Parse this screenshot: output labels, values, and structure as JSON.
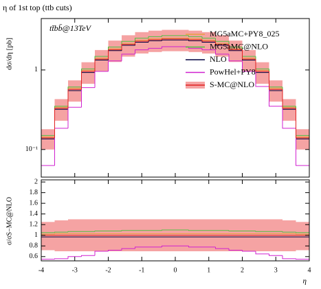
{
  "chart_data": [
    {
      "type": "histogram",
      "title": "η of 1st top (ttb cuts)",
      "y_label": "dσ/dη [pb]",
      "annotation": "tt̄bb̄@13TeV",
      "bins": [
        -4,
        -3.6,
        -3.2,
        -2.8,
        -2.4,
        -2,
        -1.6,
        -1.2,
        -0.8,
        -0.4,
        0,
        0.4,
        0.8,
        1.2,
        1.6,
        2,
        2.4,
        2.8,
        3.2,
        3.6,
        4
      ],
      "log_y": true,
      "xlim": [
        -4,
        4
      ],
      "ylim": [
        0.045,
        4.43
      ],
      "yticks": [
        {
          "value": 0.1,
          "label": "10⁻¹"
        },
        1
      ],
      "band": {
        "color": "#f5a3a3",
        "low": [
          0.1,
          0.23,
          0.4,
          0.67,
          0.96,
          1.26,
          1.47,
          1.61,
          1.68,
          1.72,
          1.72,
          1.68,
          1.61,
          1.47,
          1.26,
          0.96,
          0.67,
          0.4,
          0.23,
          0.1
        ],
        "high": [
          0.18,
          0.43,
          0.74,
          1.25,
          1.78,
          2.34,
          2.73,
          2.99,
          3.12,
          3.19,
          3.19,
          3.12,
          2.99,
          2.73,
          2.34,
          1.78,
          1.25,
          0.74,
          0.43,
          0.18
        ]
      },
      "series": [
        {
          "name": "MG5aMC+PY8_025",
          "color": "#e8a040",
          "values": [
            0.144,
            0.34,
            0.59,
            0.99,
            1.41,
            1.85,
            2.16,
            2.37,
            2.47,
            2.52,
            2.52,
            2.47,
            2.37,
            2.16,
            1.85,
            1.41,
            0.99,
            0.59,
            0.34,
            0.144
          ]
        },
        {
          "name": "MG5aMC@NLO",
          "color": "#50c040",
          "values": [
            0.15,
            0.35,
            0.61,
            1.03,
            1.48,
            1.94,
            2.29,
            2.51,
            2.62,
            2.7,
            2.7,
            2.62,
            2.51,
            2.29,
            1.94,
            1.48,
            1.03,
            0.61,
            0.35,
            0.15
          ]
        },
        {
          "name": "NLO",
          "color": "#000040",
          "values": [
            0.136,
            0.32,
            0.55,
            0.93,
            1.33,
            1.75,
            2.04,
            2.23,
            2.33,
            2.38,
            2.38,
            2.33,
            2.23,
            2.04,
            1.75,
            1.33,
            0.93,
            0.55,
            0.32,
            0.136
          ]
        },
        {
          "name": "PowHel+PY8",
          "color": "#d020d0",
          "values": [
            0.063,
            0.185,
            0.34,
            0.6,
            0.96,
            1.3,
            1.58,
            1.79,
            1.87,
            1.96,
            1.96,
            1.87,
            1.79,
            1.58,
            1.3,
            0.96,
            0.62,
            0.35,
            0.185,
            0.063
          ]
        },
        {
          "name": "S-MC@NLO",
          "color": "#e02020",
          "values": [
            0.14,
            0.33,
            0.57,
            0.96,
            1.37,
            1.8,
            2.1,
            2.3,
            2.4,
            2.45,
            2.45,
            2.4,
            2.3,
            2.1,
            1.8,
            1.37,
            0.96,
            0.57,
            0.33,
            0.14
          ]
        }
      ]
    },
    {
      "type": "histogram",
      "y_label": "σ/σS−MC@NLO",
      "x_label": "η",
      "bins": [
        -4,
        -3.6,
        -3.2,
        -2.8,
        -2.4,
        -2,
        -1.6,
        -1.2,
        -0.8,
        -0.4,
        0,
        0.4,
        0.8,
        1.2,
        1.6,
        2,
        2.4,
        2.8,
        3.2,
        3.6,
        4
      ],
      "xlim": [
        -4,
        4
      ],
      "ylim": [
        0.52,
        2.04
      ],
      "xticks": [
        -4,
        -3,
        -2,
        -1,
        0,
        1,
        2,
        3,
        4
      ],
      "yticks": [
        0.6,
        0.8,
        1,
        1.2,
        1.4,
        1.6,
        1.8,
        2
      ],
      "band": {
        "color": "#f5a3a3",
        "low": [
          0.72,
          0.7,
          0.7,
          0.7,
          0.7,
          0.7,
          0.7,
          0.7,
          0.7,
          0.7,
          0.7,
          0.7,
          0.7,
          0.7,
          0.7,
          0.7,
          0.7,
          0.7,
          0.7,
          0.72
        ],
        "high": [
          1.25,
          1.28,
          1.3,
          1.3,
          1.3,
          1.3,
          1.3,
          1.3,
          1.3,
          1.3,
          1.3,
          1.3,
          1.3,
          1.3,
          1.3,
          1.3,
          1.3,
          1.3,
          1.28,
          1.25
        ]
      },
      "series": [
        {
          "name": "MG5aMC+PY8_025",
          "color": "#e8a040",
          "values": [
            1.02,
            1.03,
            1.03,
            1.03,
            1.03,
            1.03,
            1.03,
            1.03,
            1.03,
            1.03,
            1.03,
            1.03,
            1.03,
            1.03,
            1.03,
            1.03,
            1.03,
            1.03,
            1.03,
            1.02
          ]
        },
        {
          "name": "MG5aMC@NLO",
          "color": "#50c040",
          "values": [
            1.05,
            1.06,
            1.07,
            1.07,
            1.08,
            1.08,
            1.09,
            1.09,
            1.09,
            1.1,
            1.1,
            1.09,
            1.09,
            1.09,
            1.08,
            1.08,
            1.07,
            1.07,
            1.06,
            1.05
          ]
        },
        {
          "name": "NLO",
          "color": "#000040",
          "values": [
            0.97,
            0.97,
            0.97,
            0.97,
            0.97,
            0.97,
            0.97,
            0.97,
            0.97,
            0.97,
            0.97,
            0.97,
            0.97,
            0.97,
            0.97,
            0.97,
            0.97,
            0.97,
            0.97,
            0.97
          ]
        },
        {
          "name": "PowHel+PY8",
          "color": "#d020d0",
          "values": [
            0.55,
            0.56,
            0.6,
            0.62,
            0.7,
            0.72,
            0.75,
            0.78,
            0.78,
            0.8,
            0.8,
            0.78,
            0.78,
            0.75,
            0.72,
            0.7,
            0.65,
            0.62,
            0.56,
            0.55
          ]
        },
        {
          "name": "S-MC@NLO",
          "color": "#e02020",
          "values": [
            1,
            1,
            1,
            1,
            1,
            1,
            1,
            1,
            1,
            1,
            1,
            1,
            1,
            1,
            1,
            1,
            1,
            1,
            1,
            1
          ]
        }
      ]
    }
  ]
}
